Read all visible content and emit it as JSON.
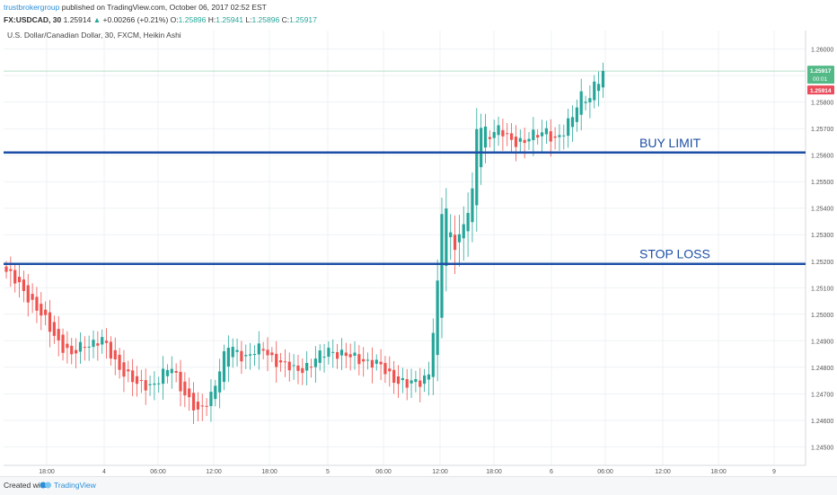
{
  "header": {
    "publisher": "trustbrokergroup",
    "published_text": "published on TradingView.com, October 06, 2017 02:52 EST",
    "symbol": "FX:USDCAD, 30",
    "last_price": "1.25914",
    "change_arrow": "▲",
    "change": "+0.00266 (+0.21%)",
    "o_label": "O:",
    "o_value": "1.25896",
    "h_label": "H:",
    "h_value": "1.25941",
    "l_label": "L:",
    "l_value": "1.25896",
    "c_label": "C:",
    "c_value": "1.25917"
  },
  "footer": {
    "created_with": "Created with",
    "brand": "TradingView"
  },
  "colors": {
    "up": "#26a69a",
    "down": "#ef5350",
    "level_line": "#1e4fa6",
    "grid": "#eef1f4",
    "price_badge_up": "#53b987",
    "price_badge_down": "#eb4d5c"
  },
  "chart_data": {
    "type": "candlestick",
    "title": "U.S. Dollar/Canadian Dollar, 30, FXCM, Heikin Ashi",
    "style": "Heikin Ashi",
    "grid": true,
    "y_axis": {
      "position": "right",
      "ticks": [
        "1.26000",
        "1.25900",
        "1.25800",
        "1.25700",
        "1.25600",
        "1.25500",
        "1.25400",
        "1.25300",
        "1.25200",
        "1.25100",
        "1.25000",
        "1.24900",
        "1.24800",
        "1.24700",
        "1.24600",
        "1.24500"
      ],
      "range": [
        1.2443,
        1.2607
      ]
    },
    "x_axis": {
      "ticks": [
        "18:00",
        "4",
        "06:00",
        "12:00",
        "18:00",
        "5",
        "06:00",
        "12:00",
        "18:00",
        "6",
        "06:00",
        "12:00",
        "18:00",
        "9"
      ]
    },
    "price_labels": {
      "last": "1.25917",
      "countdown": "00:01",
      "previous": "1.25914"
    },
    "levels": [
      {
        "label": "BUY LIMIT",
        "price": 1.2561
      },
      {
        "label": "STOP LOSS",
        "price": 1.2519
      }
    ],
    "keypoints": [
      {
        "i": 0,
        "p": 1.2516
      },
      {
        "i": 5,
        "p": 1.2507
      },
      {
        "i": 11,
        "p": 1.2492
      },
      {
        "i": 15,
        "p": 1.2484
      },
      {
        "i": 18,
        "p": 1.2489
      },
      {
        "i": 22,
        "p": 1.249
      },
      {
        "i": 25,
        "p": 1.2482
      },
      {
        "i": 30,
        "p": 1.2473
      },
      {
        "i": 34,
        "p": 1.2474
      },
      {
        "i": 38,
        "p": 1.248
      },
      {
        "i": 41,
        "p": 1.247
      },
      {
        "i": 44,
        "p": 1.2462
      },
      {
        "i": 47,
        "p": 1.247
      },
      {
        "i": 51,
        "p": 1.2488
      },
      {
        "i": 55,
        "p": 1.2484
      },
      {
        "i": 59,
        "p": 1.2487
      },
      {
        "i": 63,
        "p": 1.2481
      },
      {
        "i": 66,
        "p": 1.2479
      },
      {
        "i": 70,
        "p": 1.2481
      },
      {
        "i": 74,
        "p": 1.2487
      },
      {
        "i": 78,
        "p": 1.2484
      },
      {
        "i": 82,
        "p": 1.2483
      },
      {
        "i": 86,
        "p": 1.248
      },
      {
        "i": 89,
        "p": 1.2476
      },
      {
        "i": 92,
        "p": 1.2473
      },
      {
        "i": 95,
        "p": 1.2475
      },
      {
        "i": 97,
        "p": 1.2478
      },
      {
        "i": 99,
        "p": 1.251
      },
      {
        "i": 100,
        "p": 1.2538
      },
      {
        "i": 101,
        "p": 1.254
      },
      {
        "i": 102,
        "p": 1.253
      },
      {
        "i": 103,
        "p": 1.2527
      },
      {
        "i": 105,
        "p": 1.2533
      },
      {
        "i": 107,
        "p": 1.2545
      },
      {
        "i": 108,
        "p": 1.257
      },
      {
        "i": 109,
        "p": 1.2572
      },
      {
        "i": 111,
        "p": 1.2568
      },
      {
        "i": 113,
        "p": 1.2569
      },
      {
        "i": 116,
        "p": 1.2566
      },
      {
        "i": 119,
        "p": 1.2565
      },
      {
        "i": 122,
        "p": 1.2568
      },
      {
        "i": 124,
        "p": 1.257
      },
      {
        "i": 126,
        "p": 1.2565
      },
      {
        "i": 128,
        "p": 1.2568
      },
      {
        "i": 130,
        "p": 1.2576
      },
      {
        "i": 132,
        "p": 1.2583
      },
      {
        "i": 134,
        "p": 1.258
      },
      {
        "i": 135,
        "p": 1.2586
      },
      {
        "i": 137,
        "p": 1.2591
      }
    ]
  }
}
